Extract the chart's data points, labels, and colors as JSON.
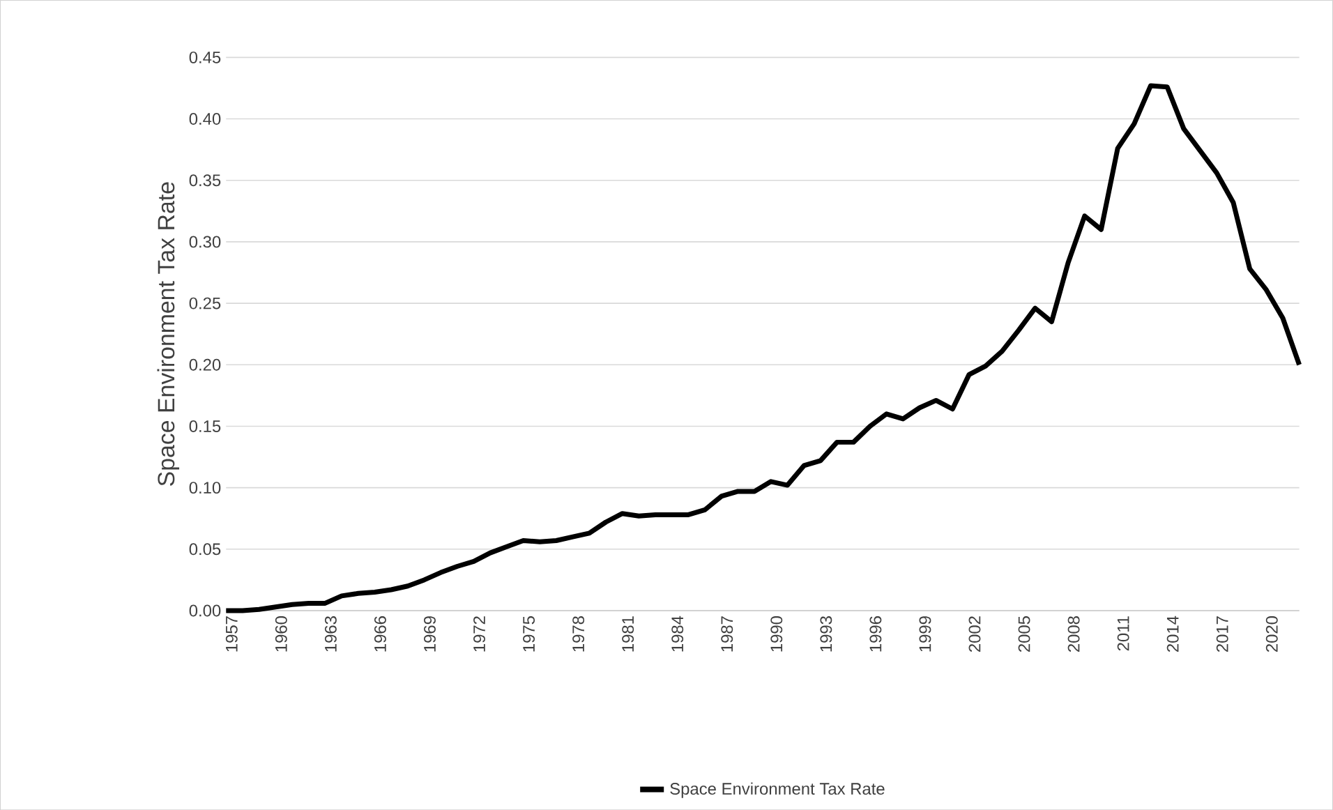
{
  "chart_data": {
    "type": "line",
    "ylabel": "Space Environment Tax Rate",
    "categories": [
      "1957",
      null,
      null,
      "1960",
      null,
      null,
      "1963",
      null,
      null,
      "1966",
      null,
      null,
      "1969",
      null,
      null,
      "1972",
      null,
      null,
      "1975",
      null,
      null,
      "1978",
      null,
      null,
      "1981",
      null,
      null,
      "1984",
      null,
      null,
      "1987",
      null,
      null,
      "1990",
      null,
      null,
      "1993",
      null,
      null,
      "1996",
      null,
      null,
      "1999",
      null,
      null,
      "2002",
      null,
      null,
      "2005",
      null,
      null,
      "2008",
      null,
      null,
      "2011",
      null,
      null,
      "2014",
      null,
      null,
      "2017",
      null,
      null,
      "2020",
      null,
      null
    ],
    "series": [
      {
        "name": "Space Environment Tax Rate",
        "color": "#000000",
        "values": [
          0,
          0,
          0.001,
          0.003,
          0.005,
          0.006,
          0.006,
          0.012,
          0.014,
          0.015,
          0.017,
          0.02,
          0.025,
          0.031,
          0.036,
          0.04,
          0.047,
          0.052,
          0.057,
          0.056,
          0.057,
          0.06,
          0.063,
          0.072,
          0.079,
          0.077,
          0.078,
          0.078,
          0.078,
          0.082,
          0.093,
          0.097,
          0.097,
          0.105,
          0.102,
          0.118,
          0.122,
          0.137,
          0.137,
          0.15,
          0.16,
          0.156,
          0.165,
          0.171,
          0.164,
          0.192,
          0.199,
          0.211,
          0.228,
          0.246,
          0.235,
          0.283,
          0.321,
          0.31,
          0.376,
          0.396,
          0.427,
          0.426,
          0.392,
          0.374,
          0.356,
          0.332,
          0.278,
          0.261,
          0.238,
          0.2
        ]
      }
    ],
    "ylim": [
      0,
      0.45
    ],
    "yticks": [
      {
        "value": 0,
        "label": "0.00"
      },
      0.05,
      {
        "value": 0.1,
        "label": "0.10"
      },
      0.15,
      {
        "value": 0.2,
        "label": "0.20"
      },
      0.25,
      {
        "value": 0.3,
        "label": "0.30"
      },
      0.35,
      {
        "value": 0.4,
        "label": "0.40"
      },
      0.45
    ],
    "grid": "y",
    "legend": "bottom",
    "marker": "none",
    "line_style": "solid"
  }
}
